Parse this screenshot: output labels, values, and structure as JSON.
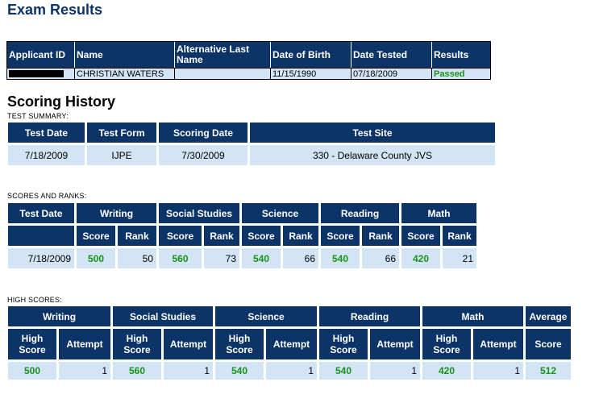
{
  "page_title": "Exam Results",
  "applicant_table": {
    "headers": [
      "Applicant ID",
      "Name",
      "Alternative Last Name",
      "Date of Birth",
      "Date Tested",
      "Results"
    ],
    "row": {
      "name": "CHRISTIAN WATERS",
      "alt_last_name": "",
      "dob": "11/15/1990",
      "date_tested": "07/18/2009",
      "result": "Passed"
    }
  },
  "scoring_history_title": "Scoring History",
  "test_summary": {
    "caption": "TEST SUMMARY:",
    "headers": [
      "Test Date",
      "Test Form",
      "Scoring Date",
      "Test Site"
    ],
    "row": [
      "7/18/2009",
      "IJPE",
      "7/30/2009",
      "330 - Delaware County JVS"
    ]
  },
  "scores_ranks": {
    "caption": "SCORES AND RANKS:",
    "test_date_header": "Test Date",
    "subjects": [
      "Writing",
      "Social Studies",
      "Science",
      "Reading",
      "Math"
    ],
    "score_label": "Score",
    "rank_label": "Rank",
    "test_date": "7/18/2009",
    "scores": [
      "500",
      "560",
      "540",
      "540",
      "420"
    ],
    "ranks": [
      "50",
      "73",
      "66",
      "66",
      "21"
    ]
  },
  "high_scores": {
    "caption": "HIGH SCORES:",
    "subjects": [
      "Writing",
      "Social Studies",
      "Science",
      "Reading",
      "Math"
    ],
    "average_header": "Average",
    "high_score_label": "High Score",
    "attempt_label": "Attempt",
    "score_label": "Score",
    "high": [
      "500",
      "560",
      "540",
      "540",
      "420"
    ],
    "attempts": [
      "1",
      "1",
      "1",
      "1",
      "1"
    ],
    "average": "512"
  },
  "colors": {
    "header_bg": "#0d3466",
    "cell_bg": "#d3e4f4",
    "pass_green": "#17921a"
  }
}
